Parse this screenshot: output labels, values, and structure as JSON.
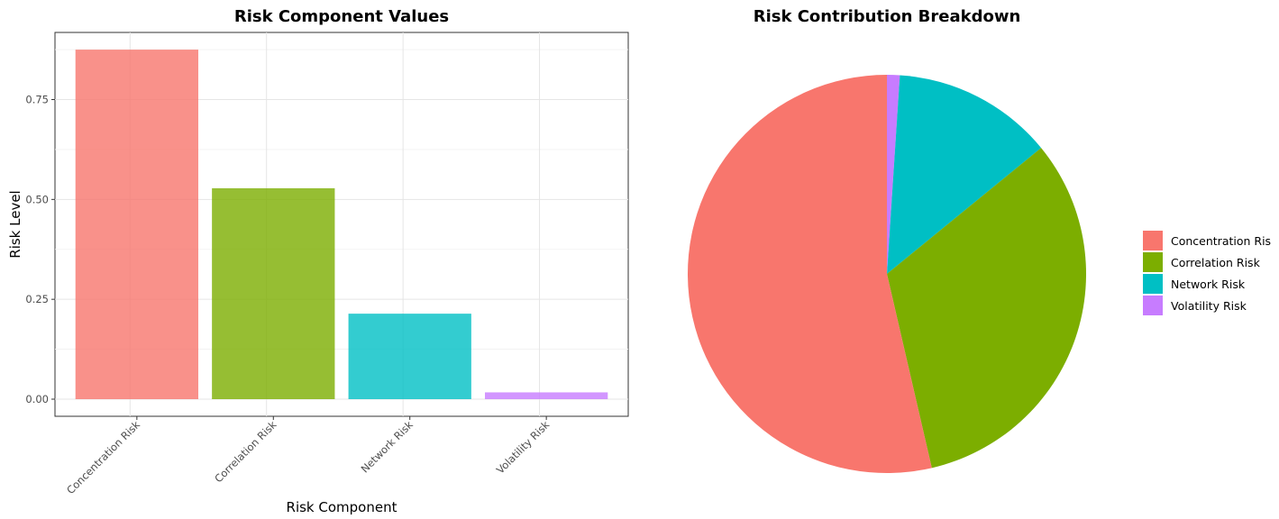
{
  "bar_chart": {
    "title": "Risk Component Values",
    "xlabel": "Risk Component",
    "ylabel": "Risk Level",
    "yticks": [
      "0.00",
      "0.25",
      "0.50",
      "0.75"
    ]
  },
  "pie_chart": {
    "title": "Risk Contribution Breakdown",
    "legend_labels": [
      "Concentration Ris",
      "Correlation Risk",
      "Network Risk",
      "Volatility Risk"
    ]
  },
  "chart_data": [
    {
      "type": "bar",
      "title": "Risk Component Values",
      "xlabel": "Risk Component",
      "ylabel": "Risk Level",
      "categories": [
        "Concentration Risk",
        "Correlation Risk",
        "Network Risk",
        "Volatility Risk"
      ],
      "values": [
        0.875,
        0.528,
        0.214,
        0.017
      ],
      "colors": [
        "#F8766D",
        "#7CAE00",
        "#00BFC4",
        "#C77CFF"
      ],
      "ylim": [
        0,
        0.92
      ],
      "yticks": [
        0,
        0.25,
        0.5,
        0.75
      ],
      "grid": true
    },
    {
      "type": "pie",
      "title": "Risk Contribution Breakdown",
      "categories": [
        "Concentration Risk",
        "Correlation Risk",
        "Network Risk",
        "Volatility Risk"
      ],
      "values": [
        0.538,
        0.324,
        0.131,
        0.0104
      ],
      "colors": [
        "#F8766D",
        "#7CAE00",
        "#00BFC4",
        "#C77CFF"
      ],
      "legend_position": "right"
    }
  ]
}
